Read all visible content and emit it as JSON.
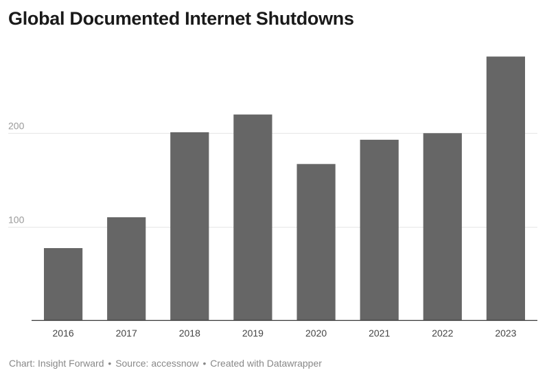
{
  "chart_data": {
    "type": "bar",
    "title": "Global Documented Internet Shutdowns",
    "xlabel": "",
    "ylabel": "",
    "categories": [
      "2016",
      "2017",
      "2018",
      "2019",
      "2020",
      "2021",
      "2022",
      "2023"
    ],
    "values": [
      77,
      110,
      201,
      220,
      167,
      193,
      200,
      282
    ],
    "ylim": [
      0,
      300
    ],
    "yticks": [
      100,
      200
    ],
    "ytick_labels": [
      "100",
      "200"
    ],
    "grid": true,
    "bar_color": "#666666",
    "grid_color": "#e6e6e6",
    "axis_color": "#333333"
  },
  "footer": {
    "chart_credit": "Chart: Insight Forward",
    "source": "Source: accessnow",
    "created_with": "Created with Datawrapper",
    "separator": "•"
  }
}
